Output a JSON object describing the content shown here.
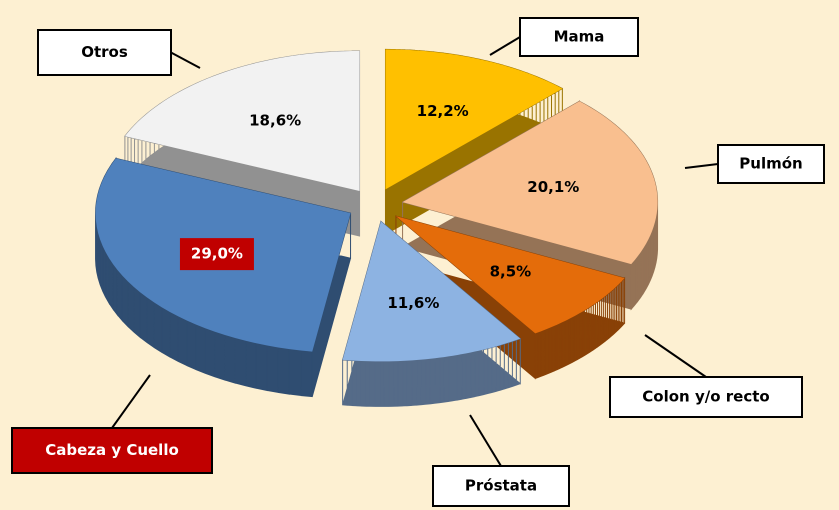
{
  "chart_data": {
    "type": "pie",
    "categories": [
      "Mama",
      "Pulmón",
      "Colon y/o recto",
      "Próstata",
      "Cabeza y Cuello",
      "Otros"
    ],
    "values": [
      12.2,
      20.1,
      8.5,
      11.6,
      29.0,
      18.6
    ],
    "value_labels": [
      "12,2%",
      "20,1%",
      "8,5%",
      "11,6%",
      "29,0%",
      "18,6%"
    ],
    "colors": [
      "#ffc000",
      "#f9bf8f",
      "#e46c0a",
      "#8db3e2",
      "#4f81bd",
      "#f2f2f2"
    ]
  }
}
